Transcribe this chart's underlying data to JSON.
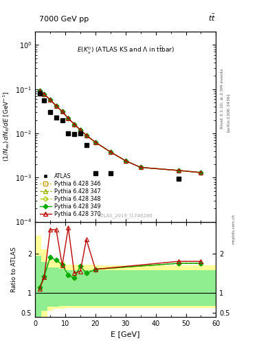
{
  "title_top": "7000 GeV pp",
  "title_top_right": "tt",
  "plot_title": "E(K$_s^0$) (ATLAS KS and $\\Lambda$ in t$\\bar{t}$bar)",
  "watermark": "ATLAS_2019_I1746286",
  "right_label1": "Rivet 3.1.10, ≥ 2.5M events",
  "right_label2": "[arXiv:1306.3436]",
  "xlabel": "E [GeV]",
  "ylabel": "(1/N_{ev}) dN_{K}/dE [GeV$^{-1}$]",
  "ylabel_ratio": "Ratio to ATLAS",
  "atlas_x": [
    1.5,
    3.0,
    5.0,
    7.0,
    9.0,
    11.0,
    13.0,
    15.0,
    17.0,
    20.0,
    25.0,
    47.5
  ],
  "atlas_y": [
    0.08,
    0.055,
    0.03,
    0.023,
    0.02,
    0.01,
    0.0095,
    0.01,
    0.0055,
    0.00125,
    0.00125,
    0.00095
  ],
  "py_x": [
    1.5,
    3.0,
    5.0,
    7.0,
    9.0,
    11.0,
    13.0,
    15.0,
    17.0,
    20.0,
    25.0,
    30.0,
    35.0,
    47.5,
    55.0
  ],
  "py_y": [
    0.092,
    0.078,
    0.057,
    0.042,
    0.031,
    0.022,
    0.016,
    0.012,
    0.009,
    0.0063,
    0.0038,
    0.0024,
    0.0017,
    0.00145,
    0.0013
  ],
  "ratio_green_x": [
    1.5,
    3.0,
    5.0,
    7.0,
    9.0,
    11.0,
    13.0,
    15.0,
    17.0,
    20.0,
    47.5,
    55.0
  ],
  "ratio_green_y": [
    1.15,
    1.42,
    1.9,
    1.83,
    1.72,
    1.45,
    1.38,
    1.68,
    1.5,
    1.6,
    1.75,
    1.75
  ],
  "ratio_red_x": [
    1.5,
    3.0,
    5.0,
    7.0,
    9.0,
    11.0,
    13.0,
    15.0,
    17.0,
    20.0,
    47.5,
    55.0
  ],
  "ratio_red_y": [
    1.1,
    1.4,
    2.6,
    2.6,
    1.7,
    2.65,
    1.5,
    1.55,
    2.35,
    1.6,
    1.8,
    1.8
  ],
  "yellow_bins": [
    0,
    2,
    4,
    6,
    8,
    10,
    20,
    60
  ],
  "yellow_top": [
    2.45,
    2.1,
    1.85,
    1.82,
    1.78,
    1.72,
    1.7,
    1.7
  ],
  "yellow_bot": [
    0.27,
    0.38,
    0.55,
    0.6,
    0.6,
    0.62,
    0.62,
    0.62
  ],
  "green_bins": [
    0,
    2,
    4,
    6,
    8,
    10,
    20,
    60
  ],
  "green_top": [
    1.95,
    1.78,
    1.65,
    1.65,
    1.62,
    1.58,
    1.58,
    1.58
  ],
  "green_bot": [
    0.4,
    0.55,
    0.65,
    0.65,
    0.68,
    0.68,
    0.68,
    0.68
  ],
  "color_346": "#c8a000",
  "color_347": "#a0b400",
  "color_348": "#b0c800",
  "color_349": "#00aa00",
  "color_370": "#bb0000",
  "color_atlas": "#000000",
  "color_green_band": "#90ee90",
  "color_yellow_band": "#ffff99",
  "xlim": [
    0,
    60
  ],
  "ylim_main": [
    0.0001,
    2.0
  ],
  "ylim_ratio": [
    0.4,
    2.8
  ]
}
